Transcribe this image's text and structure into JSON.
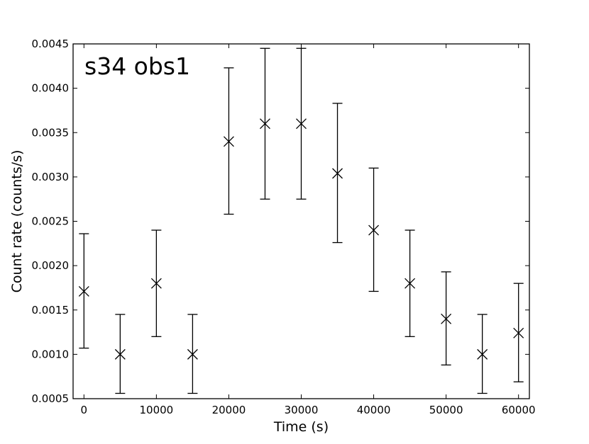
{
  "chart_data": {
    "type": "scatter",
    "title": "",
    "annotation": "s34 obs1",
    "xlabel": "Time (s)",
    "ylabel": "Count rate (counts/s)",
    "xlim": [
      -1500,
      61500
    ],
    "ylim": [
      0.0005,
      0.0045
    ],
    "xticks": [
      0,
      10000,
      20000,
      30000,
      40000,
      50000,
      60000
    ],
    "xtick_labels": [
      "0",
      "10000",
      "20000",
      "30000",
      "40000",
      "50000",
      "60000"
    ],
    "yticks": [
      0.0005,
      0.001,
      0.0015,
      0.002,
      0.0025,
      0.003,
      0.0035,
      0.004,
      0.0045
    ],
    "ytick_labels": [
      "0.0005",
      "0.0010",
      "0.0015",
      "0.0020",
      "0.0025",
      "0.0030",
      "0.0035",
      "0.0040",
      "0.0045"
    ],
    "grid": false,
    "marker": "x",
    "color": "#000000",
    "x": [
      0,
      5000,
      10000,
      15000,
      20000,
      25000,
      30000,
      35000,
      40000,
      45000,
      50000,
      55000,
      60000
    ],
    "y": [
      0.00171,
      0.001,
      0.0018,
      0.001,
      0.0034,
      0.0036,
      0.0036,
      0.00304,
      0.0024,
      0.0018,
      0.0014,
      0.001,
      0.00124
    ],
    "y_low": [
      0.00107,
      0.00056,
      0.0012,
      0.00056,
      0.00258,
      0.00275,
      0.00275,
      0.00226,
      0.00171,
      0.0012,
      0.00088,
      0.00056,
      0.00069
    ],
    "y_high": [
      0.00236,
      0.00145,
      0.0024,
      0.00145,
      0.00423,
      0.00445,
      0.00445,
      0.00383,
      0.0031,
      0.0024,
      0.00193,
      0.00145,
      0.0018
    ]
  }
}
